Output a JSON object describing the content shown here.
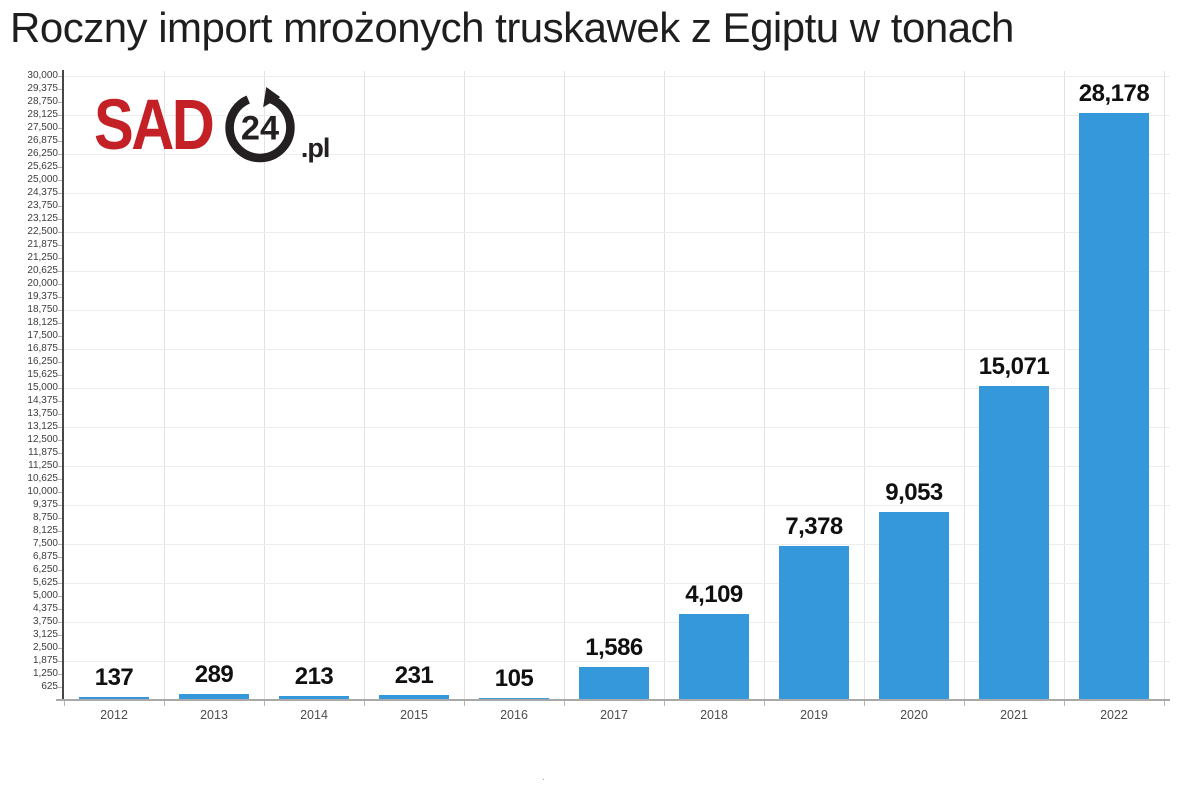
{
  "title": "Roczny import mrożonych truskawek z Egiptu w tonach",
  "logo": {
    "brand": "SAD",
    "number": "24",
    "suffix": ".pl",
    "brand_color": "#c42127",
    "dark_color": "#242021"
  },
  "footer_dot": ".",
  "colors": {
    "bar": "#3598db",
    "value_label": "#101010",
    "x_axis_line": "#a9a9a9",
    "y_axis_line": "#474747",
    "grid_horizontal": "#ededed",
    "grid_vertical": "#e2e2e2",
    "y_tick_label": "#3d3d3d",
    "x_tick_label": "#4d4d4d"
  },
  "chart_data": {
    "type": "bar",
    "title": "Roczny import mrożonych truskawek z Egiptu w tonach",
    "categories": [
      "2012",
      "2013",
      "2014",
      "2015",
      "2016",
      "2017",
      "2018",
      "2019",
      "2020",
      "2021",
      "2022"
    ],
    "values": [
      137,
      289,
      213,
      231,
      105,
      1586,
      4109,
      7378,
      9053,
      15071,
      28178
    ],
    "value_labels": [
      "137",
      "289",
      "213",
      "231",
      "105",
      "1,586",
      "4,109",
      "7,378",
      "9,053",
      "15,071",
      "28,178"
    ],
    "xlabel": "",
    "ylabel": "",
    "ylim": [
      0,
      30000
    ],
    "ytick_step": 625,
    "ytick_first_label": 625,
    "ytick_last_label": 30000,
    "gridline_step": 1875,
    "grid": true,
    "legend": false,
    "bar_color": "#3598db",
    "value_labels_position": "above-bars",
    "number_format": "comma-thousands"
  }
}
